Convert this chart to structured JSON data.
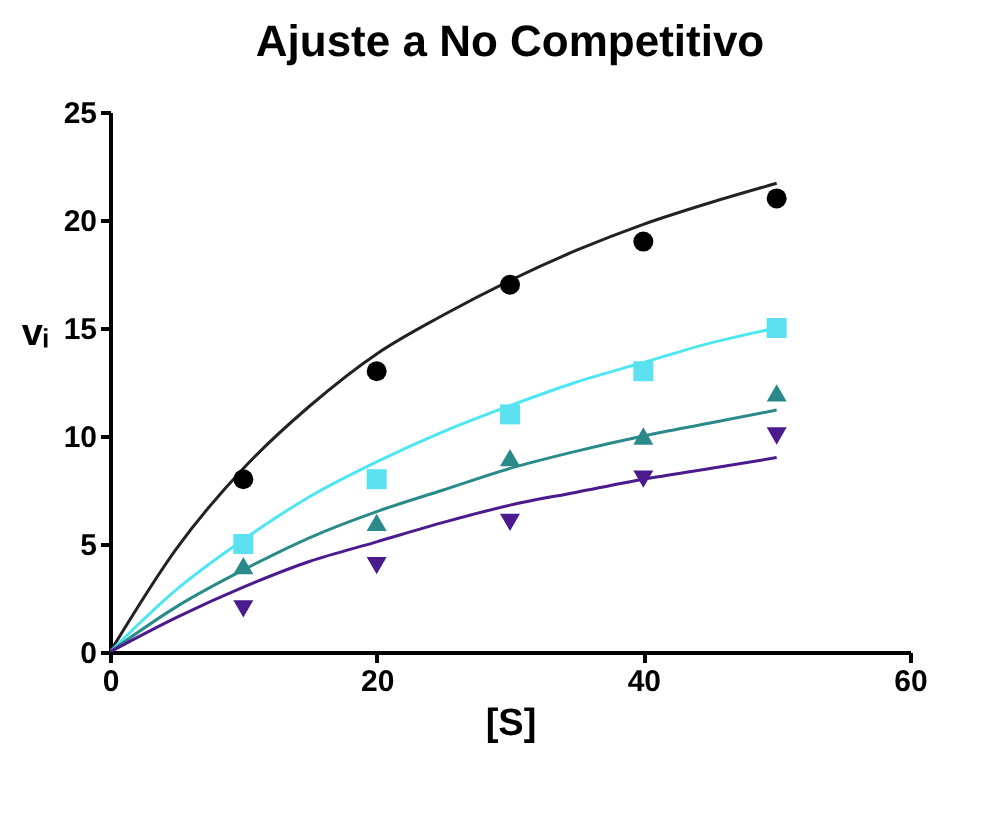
{
  "chart_data": {
    "type": "scatter",
    "title": "Ajuste a No Competitivo",
    "xlabel": "[S]",
    "ylabel": "vᵢ",
    "xlim": [
      0,
      60
    ],
    "xticks": [
      0,
      20,
      40,
      60
    ],
    "ylim": [
      0,
      25
    ],
    "yticks": [
      0,
      5,
      10,
      15,
      20,
      25
    ],
    "grid": false,
    "x": [
      10,
      20,
      30,
      40,
      50
    ],
    "series": [
      {
        "type": "line",
        "color": "#222222",
        "marker": "none",
        "x": [
          0,
          5,
          10,
          15,
          20,
          25,
          30,
          35,
          40,
          45,
          50
        ],
        "values": [
          0,
          4.8,
          8.5,
          11.4,
          13.8,
          15.6,
          17.2,
          18.6,
          19.8,
          20.8,
          21.7
        ]
      },
      {
        "type": "line",
        "color": "#4ee6f0",
        "marker": "none",
        "x": [
          0,
          5,
          10,
          15,
          20,
          25,
          30,
          35,
          40,
          45,
          50
        ],
        "values": [
          0,
          2.9,
          5.2,
          7.2,
          8.8,
          10.2,
          11.4,
          12.5,
          13.4,
          14.3,
          15.0
        ]
      },
      {
        "type": "line",
        "color": "#2a8a8a",
        "marker": "none",
        "x": [
          0,
          5,
          10,
          15,
          20,
          25,
          30,
          35,
          40,
          45,
          50
        ],
        "values": [
          0,
          2.1,
          3.8,
          5.3,
          6.5,
          7.5,
          8.5,
          9.3,
          10.0,
          10.6,
          11.2
        ]
      },
      {
        "type": "line",
        "color": "#4b1a8c",
        "marker": "none",
        "x": [
          0,
          5,
          10,
          15,
          20,
          25,
          30,
          35,
          40,
          45,
          50
        ],
        "values": [
          0,
          1.6,
          3.0,
          4.2,
          5.1,
          6.0,
          6.8,
          7.4,
          8.0,
          8.5,
          9.0
        ]
      },
      {
        "type": "scatter",
        "color": "#000000",
        "marker": "circle",
        "values": [
          8,
          13,
          17,
          19,
          21
        ]
      },
      {
        "type": "scatter",
        "color": "#5ce1f0",
        "marker": "square",
        "values": [
          5,
          8,
          11,
          13,
          15
        ]
      },
      {
        "type": "scatter",
        "color": "#2a8a8a",
        "marker": "triangle",
        "values": [
          4,
          6,
          9,
          10,
          12
        ]
      },
      {
        "type": "scatter",
        "color": "#4b1a8c",
        "marker": "triangle-down",
        "values": [
          2,
          4,
          6,
          8,
          10
        ]
      }
    ]
  }
}
